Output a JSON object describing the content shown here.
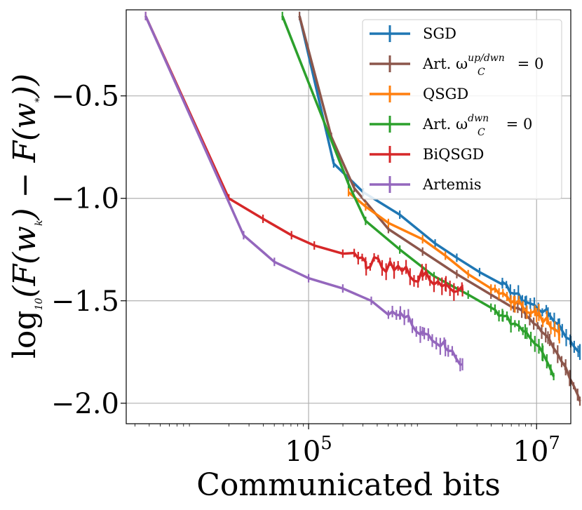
{
  "chart_data": {
    "type": "line",
    "xlabel": "Communicated bits",
    "ylabel": "log10(F(wk) − F(w*))",
    "ylabel_parts": {
      "pre": "log",
      "base": "10",
      "a": "(F(w",
      "sub1": "k",
      "b": ") − F(w",
      "sub2": "*",
      "c": "))"
    },
    "xscale": "log",
    "xlim_log10": [
      3.4,
      7.3
    ],
    "ylim": [
      -2.1,
      -0.08
    ],
    "x_ticks": [
      {
        "base": "10",
        "exp": "5",
        "value_log10": 5
      },
      {
        "base": "10",
        "exp": "7",
        "value_log10": 7
      }
    ],
    "y_ticks": [
      {
        "label": "−0.5",
        "value": -0.5
      },
      {
        "label": "−1.0",
        "value": -1.0
      },
      {
        "label": "−1.5",
        "value": -1.5
      },
      {
        "label": "−2.0",
        "value": -2.0
      }
    ],
    "grid": true,
    "legend_position": "top-right",
    "series": [
      {
        "name": "SGD",
        "legend_main": "SGD",
        "legend_sup": "",
        "legend_sub": "",
        "color": "#1f77b4",
        "points": [
          [
            4.92,
            -0.11
          ],
          [
            5.22,
            -0.83
          ],
          [
            5.48,
            -0.97
          ],
          [
            5.8,
            -1.08
          ],
          [
            6.11,
            -1.22
          ],
          [
            6.3,
            -1.29
          ],
          [
            6.5,
            -1.36
          ],
          [
            6.7,
            -1.42
          ],
          [
            6.9,
            -1.5
          ],
          [
            7.1,
            -1.56
          ],
          [
            7.2,
            -1.62
          ],
          [
            7.3,
            -1.7
          ],
          [
            7.38,
            -1.75
          ]
        ],
        "noise_from_x": 6.7,
        "noise_amp": 0.015
      },
      {
        "name": "Art. ωC^up/dwn = 0",
        "legend_main": "Art. ω",
        "legend_sup": "up/dwn",
        "legend_sub": "C",
        "legend_tail": " = 0",
        "color": "#8c564b",
        "points": [
          [
            4.92,
            -0.11
          ],
          [
            5.2,
            -0.7
          ],
          [
            5.4,
            -0.95
          ],
          [
            5.7,
            -1.15
          ],
          [
            6.0,
            -1.26
          ],
          [
            6.3,
            -1.37
          ],
          [
            6.6,
            -1.47
          ],
          [
            6.9,
            -1.56
          ],
          [
            7.1,
            -1.68
          ],
          [
            7.25,
            -1.82
          ],
          [
            7.38,
            -1.99
          ]
        ],
        "noise_from_x": 6.8,
        "noise_amp": 0.008
      },
      {
        "name": "QSGD",
        "legend_main": "QSGD",
        "legend_sup": "",
        "legend_sub": "",
        "color": "#ff7f0e",
        "points": [
          [
            5.35,
            -0.97
          ],
          [
            5.5,
            -1.04
          ],
          [
            5.7,
            -1.12
          ],
          [
            6.0,
            -1.2
          ],
          [
            6.2,
            -1.28
          ],
          [
            6.4,
            -1.37
          ],
          [
            6.6,
            -1.44
          ],
          [
            6.8,
            -1.5
          ],
          [
            7.0,
            -1.57
          ],
          [
            7.1,
            -1.6
          ],
          [
            7.2,
            -1.67
          ]
        ],
        "noise_from_x": 6.6,
        "noise_amp": 0.02
      },
      {
        "name": "Art. ωC^dwn = 0",
        "legend_main": "Art. ω",
        "legend_sup": "dwn",
        "legend_sub": "C",
        "legend_tail": " = 0",
        "color": "#2ca02c",
        "points": [
          [
            4.77,
            -0.11
          ],
          [
            5.35,
            -0.93
          ],
          [
            5.5,
            -1.11
          ],
          [
            5.8,
            -1.25
          ],
          [
            6.1,
            -1.38
          ],
          [
            6.4,
            -1.47
          ],
          [
            6.7,
            -1.57
          ],
          [
            6.9,
            -1.65
          ],
          [
            7.05,
            -1.75
          ],
          [
            7.15,
            -1.87
          ]
        ],
        "noise_from_x": 6.6,
        "noise_amp": 0.015
      },
      {
        "name": "BiQSGD",
        "legend_main": "BiQSGD",
        "legend_sup": "",
        "legend_sub": "",
        "color": "#d62728",
        "points": [
          [
            3.57,
            -0.11
          ],
          [
            4.3,
            -1.0
          ],
          [
            4.6,
            -1.1
          ],
          [
            4.85,
            -1.18
          ],
          [
            5.05,
            -1.23
          ],
          [
            5.3,
            -1.27
          ],
          [
            5.5,
            -1.31
          ],
          [
            5.75,
            -1.35
          ],
          [
            6.0,
            -1.38
          ],
          [
            6.2,
            -1.42
          ],
          [
            6.35,
            -1.45
          ]
        ],
        "noise_from_x": 5.4,
        "noise_amp": 0.035
      },
      {
        "name": "Artemis",
        "legend_main": "Artemis",
        "legend_sup": "",
        "legend_sub": "",
        "color": "#9467bd",
        "points": [
          [
            3.57,
            -0.11
          ],
          [
            4.43,
            -1.18
          ],
          [
            4.7,
            -1.31
          ],
          [
            5.0,
            -1.39
          ],
          [
            5.3,
            -1.44
          ],
          [
            5.55,
            -1.5
          ],
          [
            5.8,
            -1.57
          ],
          [
            6.0,
            -1.65
          ],
          [
            6.2,
            -1.73
          ],
          [
            6.35,
            -1.81
          ]
        ],
        "noise_from_x": 5.7,
        "noise_amp": 0.03
      }
    ]
  }
}
